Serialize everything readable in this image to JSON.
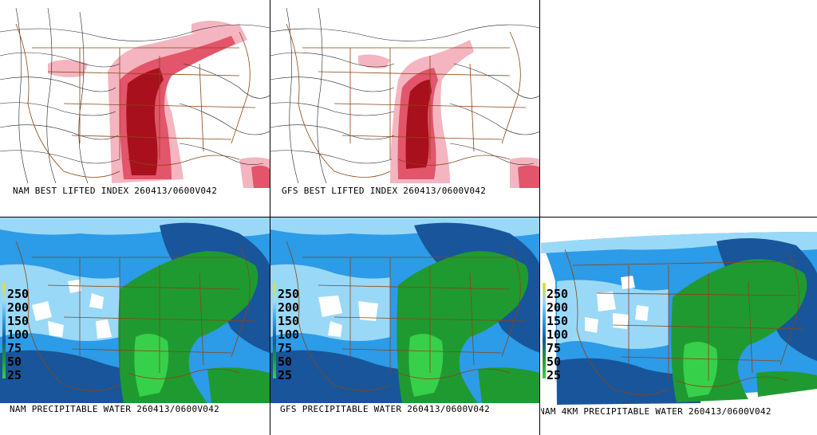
{
  "panels": {
    "nam_li": {
      "caption": "NAM BEST LIFTED INDEX 260413/0600V042"
    },
    "gfs_li": {
      "caption": "GFS BEST LIFTED INDEX 260413/0600V042"
    },
    "nam_pw": {
      "caption": "NAM PRECIPITABLE WATER 260413/0600V042"
    },
    "gfs_pw": {
      "caption": "GFS PRECIPITABLE WATER 260413/0600V042"
    },
    "nam4_pw": {
      "caption": "NAM 4KM PRECIPITABLE WATER 260413/0600V042"
    }
  },
  "pw_legend": [
    "250",
    "200",
    "150",
    "100",
    "75",
    "50",
    "25"
  ],
  "colors": {
    "li_light": "#f4b5c0",
    "li_mid": "#e2556a",
    "li_dark": "#a8101e",
    "pw_light": "#9ad8f8",
    "pw_mid": "#2c9be8",
    "pw_dark": "#19559a",
    "pw_green": "#1f9a30",
    "pw_lightgreen": "#36d04a",
    "border": "#8b4513"
  }
}
